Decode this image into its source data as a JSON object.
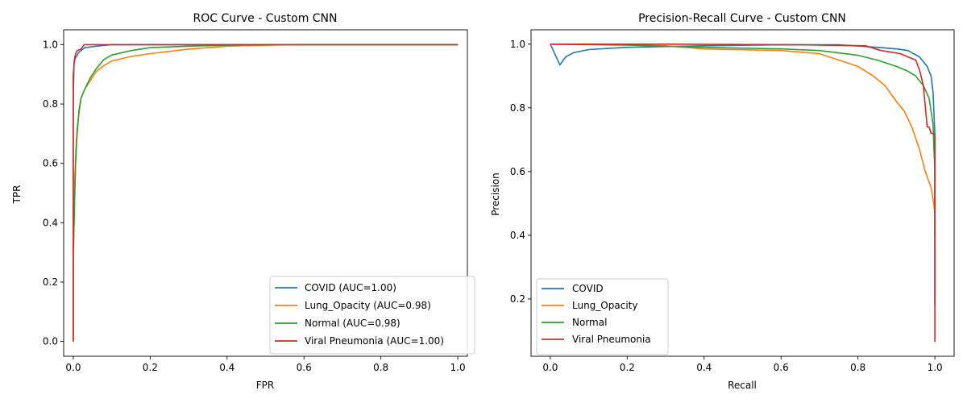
{
  "chart_data": [
    {
      "type": "line",
      "title": "ROC Curve - Custom CNN",
      "xlabel": "FPR",
      "ylabel": "TPR",
      "xlim": [
        -0.025,
        1.025
      ],
      "ylim": [
        -0.05,
        1.05
      ],
      "xticks": [
        "0.0",
        "0.2",
        "0.4",
        "0.6",
        "0.8",
        "1.0"
      ],
      "yticks": [
        "0.0",
        "0.2",
        "0.4",
        "0.6",
        "0.8",
        "1.0"
      ],
      "legend_position": "lower-right",
      "series": [
        {
          "name": "COVID (AUC=1.00)",
          "color": "#1f77b4",
          "x": [
            0,
            0,
            0.002,
            0.004,
            0.008,
            0.015,
            0.03,
            0.06,
            0.1,
            0.2,
            1.0
          ],
          "y": [
            0,
            0.82,
            0.94,
            0.95,
            0.96,
            0.975,
            0.99,
            0.995,
            1.0,
            1.0,
            1.0
          ]
        },
        {
          "name": "Lung_Opacity (AUC=0.98)",
          "color": "#ff7f0e",
          "x": [
            0,
            0,
            0.002,
            0.004,
            0.007,
            0.01,
            0.015,
            0.02,
            0.03,
            0.045,
            0.06,
            0.08,
            0.1,
            0.15,
            0.2,
            0.3,
            0.4,
            0.5,
            0.57,
            1.0
          ],
          "y": [
            0,
            0.25,
            0.4,
            0.55,
            0.65,
            0.72,
            0.77,
            0.82,
            0.85,
            0.88,
            0.91,
            0.93,
            0.945,
            0.96,
            0.97,
            0.985,
            0.995,
            0.998,
            1.0,
            1.0
          ]
        },
        {
          "name": "Normal (AUC=0.98)",
          "color": "#2ca02c",
          "x": [
            0,
            0,
            0.003,
            0.006,
            0.01,
            0.015,
            0.02,
            0.03,
            0.045,
            0.06,
            0.08,
            0.1,
            0.15,
            0.2,
            0.3,
            0.45,
            1.0
          ],
          "y": [
            0,
            0.3,
            0.45,
            0.6,
            0.7,
            0.78,
            0.82,
            0.85,
            0.89,
            0.92,
            0.95,
            0.965,
            0.98,
            0.99,
            0.995,
            1.0,
            1.0
          ]
        },
        {
          "name": "Viral Pneumonia (AUC=1.00)",
          "color": "#d62728",
          "x": [
            0,
            0,
            0.003,
            0.006,
            0.01,
            0.02,
            0.028,
            1.0
          ],
          "y": [
            0,
            0.9,
            0.95,
            0.97,
            0.98,
            0.985,
            1.0,
            1.0
          ]
        }
      ]
    },
    {
      "type": "line",
      "title": "Precision-Recall Curve - Custom CNN",
      "xlabel": "Recall",
      "ylabel": "Precision",
      "xlim": [
        -0.05,
        1.05
      ],
      "ylim": [
        0.02,
        1.045
      ],
      "xticks": [
        "0.0",
        "0.2",
        "0.4",
        "0.6",
        "0.8",
        "1.0"
      ],
      "yticks": [
        "0.2",
        "0.4",
        "0.6",
        "0.8",
        "1.0"
      ],
      "legend_position": "lower-left",
      "series": [
        {
          "name": "COVID",
          "color": "#1f77b4",
          "x": [
            0,
            0.025,
            0.04,
            0.06,
            0.1,
            0.2,
            0.4,
            0.6,
            0.75,
            0.85,
            0.9,
            0.93,
            0.96,
            0.98,
            0.99,
            0.995,
            1.0,
            1.0
          ],
          "y": [
            1.0,
            0.935,
            0.96,
            0.973,
            0.983,
            0.99,
            0.995,
            0.998,
            0.998,
            0.99,
            0.985,
            0.98,
            0.96,
            0.93,
            0.9,
            0.85,
            0.72,
            0.18
          ]
        },
        {
          "name": "Lung_Opacity",
          "color": "#ff7f0e",
          "x": [
            0,
            0.1,
            0.3,
            0.4,
            0.6,
            0.7,
            0.8,
            0.84,
            0.87,
            0.9,
            0.92,
            0.94,
            0.96,
            0.975,
            0.99,
            0.997,
            1.0
          ],
          "y": [
            1.0,
            1.0,
            0.995,
            0.985,
            0.98,
            0.97,
            0.93,
            0.9,
            0.87,
            0.82,
            0.79,
            0.74,
            0.67,
            0.6,
            0.55,
            0.5,
            0.47
          ]
        },
        {
          "name": "Normal",
          "color": "#2ca02c",
          "x": [
            0,
            0.2,
            0.4,
            0.6,
            0.7,
            0.8,
            0.85,
            0.9,
            0.93,
            0.95,
            0.97,
            0.985,
            0.995,
            1.0,
            1.0
          ],
          "y": [
            1.0,
            0.997,
            0.99,
            0.985,
            0.98,
            0.965,
            0.95,
            0.93,
            0.915,
            0.9,
            0.87,
            0.83,
            0.75,
            0.6,
            0.4
          ]
        },
        {
          "name": "Viral Pneumonia",
          "color": "#d62728",
          "x": [
            0,
            0.3,
            0.65,
            0.82,
            0.86,
            0.91,
            0.95,
            0.96,
            0.97,
            0.98,
            0.985,
            0.99,
            0.995,
            1.0,
            1.0
          ],
          "y": [
            1.0,
            1.0,
            0.998,
            0.995,
            0.98,
            0.97,
            0.95,
            0.92,
            0.87,
            0.74,
            0.74,
            0.72,
            0.72,
            0.715,
            0.065
          ]
        }
      ]
    }
  ]
}
